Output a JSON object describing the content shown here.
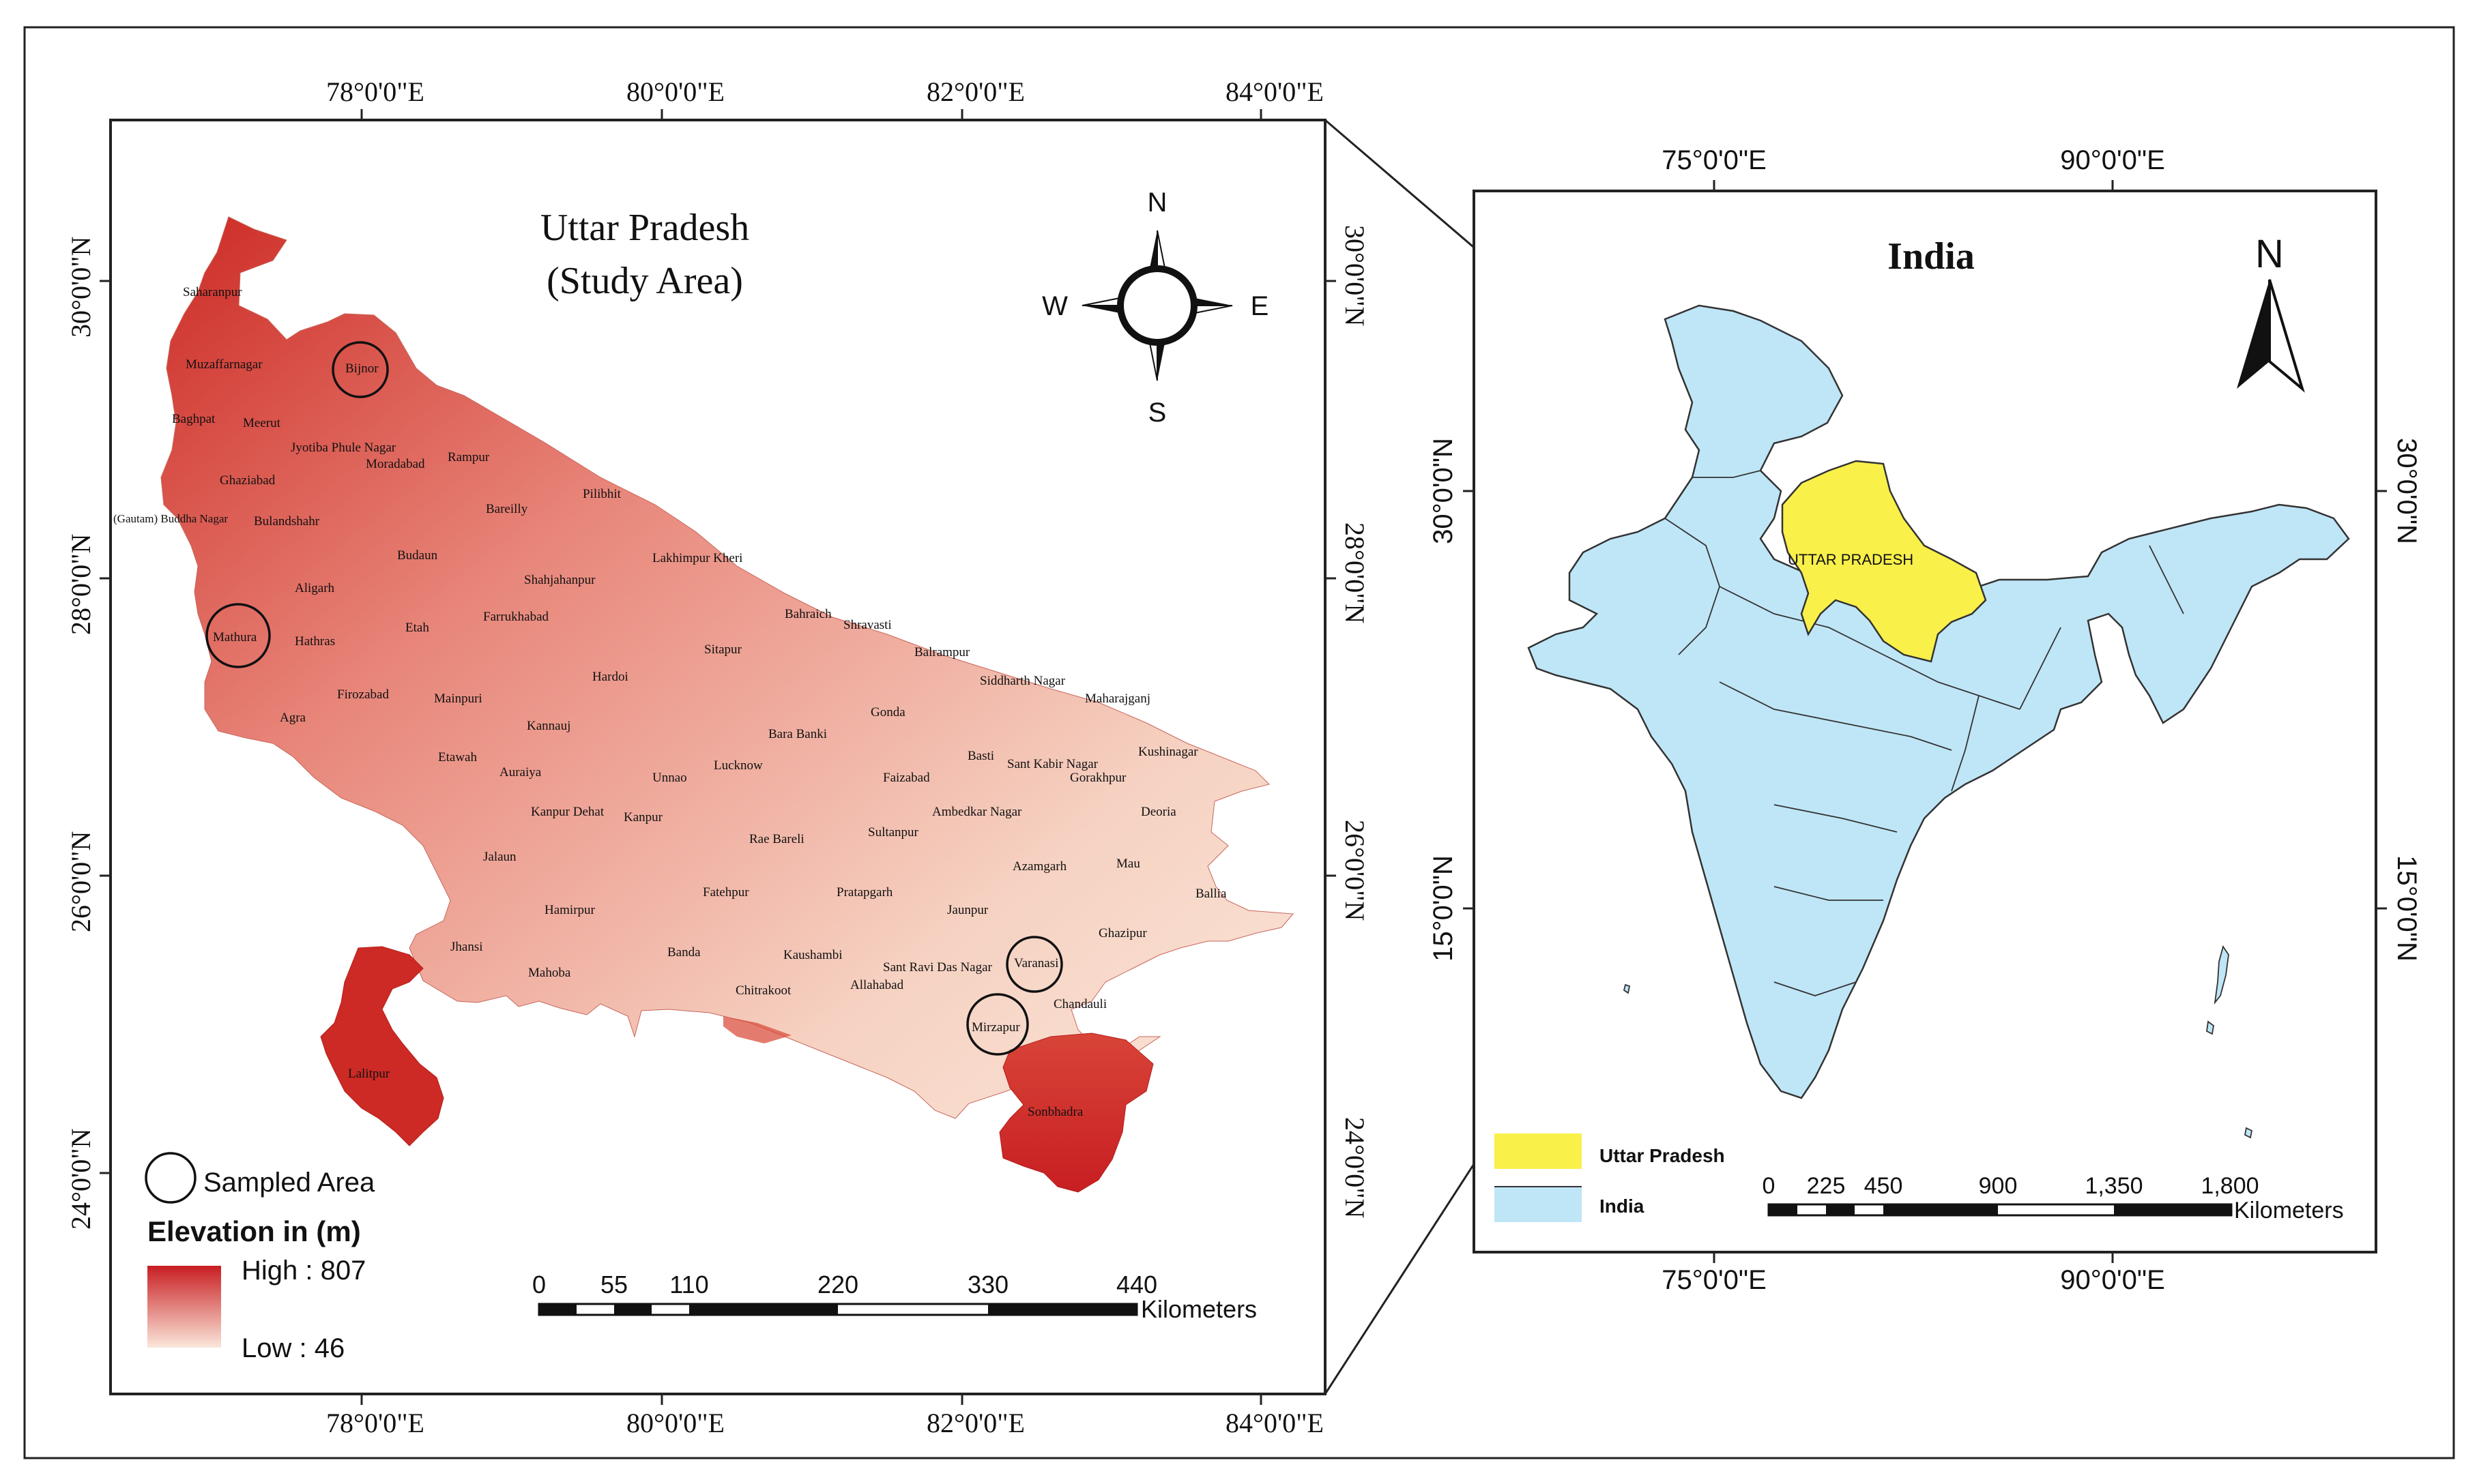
{
  "left_map": {
    "title_line1": "Uttar Pradesh",
    "title_line2": "(Study Area)",
    "lon_ticks": [
      "78°0'0\"E",
      "80°0'0\"E",
      "82°0'0\"E",
      "84°0'0\"E"
    ],
    "lat_ticks": [
      "30°0'0\"N",
      "28°0'0\"N",
      "26°0'0\"N",
      "24°0'0\"N"
    ],
    "compass": {
      "n": "N",
      "s": "S",
      "e": "E",
      "w": "W"
    },
    "state_fill_high": "#c81e22",
    "state_fill_low": "#f8ddd0",
    "districts": [
      "Saharanpur",
      "Muzaffarnagar",
      "Bijnor",
      "Baghpat",
      "Meerut",
      "Jyotiba Phule Nagar",
      "Moradabad",
      "Rampur",
      "Ghaziabad",
      "Bareilly",
      "Pilibhit",
      "(Gautam) Buddha Nagar",
      "Bulandshahr",
      "Budaun",
      "Lakhimpur Kheri",
      "Shahjahanpur",
      "Aligarh",
      "Bahraich",
      "Shravasti",
      "Mathura",
      "Hathras",
      "Etah",
      "Farrukhabad",
      "Sitapur",
      "Balrampur",
      "Hardoi",
      "Siddharth Nagar",
      "Maharajganj",
      "Firozabad",
      "Mainpuri",
      "Gonda",
      "Agra",
      "Kannauj",
      "Bara Banki",
      "Basti",
      "Sant Kabir Nagar",
      "Kushinagar",
      "Etawah",
      "Auraiya",
      "Unnao",
      "Lucknow",
      "Faizabad",
      "Gorakhpur",
      "Kanpur Dehat",
      "Kanpur",
      "Ambedkar Nagar",
      "Deoria",
      "Rae Bareli",
      "Sultanpur",
      "Jalaun",
      "Azamgarh",
      "Mau",
      "Ballia",
      "Fatehpur",
      "Pratapgarh",
      "Hamirpur",
      "Jaunpur",
      "Ghazipur",
      "Jhansi",
      "Banda",
      "Kaushambi",
      "Sant Ravi Das Nagar",
      "Varanasi",
      "Mahoba",
      "Chitrakoot",
      "Allahabad",
      "Chandauli",
      "Mirzapur",
      "Lalitpur",
      "Sonbhadra"
    ],
    "sampled_districts": [
      "Bijnor",
      "Mathura",
      "Varanasi",
      "Mirzapur"
    ],
    "legend": {
      "sampled_label": "Sampled Area",
      "elevation_title": "Elevation in (m)",
      "high_label": "High : 807",
      "low_label": "Low : 46"
    },
    "scale_bar": {
      "labels": [
        "0",
        "55",
        "110",
        "220",
        "330",
        "440"
      ],
      "unit": "Kilometers"
    }
  },
  "right_map": {
    "title": "India",
    "north": "N",
    "lon_ticks": [
      "75°0'0\"E",
      "90°0'0\"E"
    ],
    "lat_ticks": [
      "30°0'0\"N",
      "15°0'0\"N"
    ],
    "state_label": "UTTAR PRADESH",
    "india_fill": "#bfe6f7",
    "up_fill": "#f9f04a",
    "legend": {
      "up_label": "Uttar Pradesh",
      "india_label": "India"
    },
    "scale_bar": {
      "labels": [
        "0",
        "225",
        "450",
        "900",
        "1,350",
        "1,800"
      ],
      "unit": "Kilometers"
    }
  }
}
